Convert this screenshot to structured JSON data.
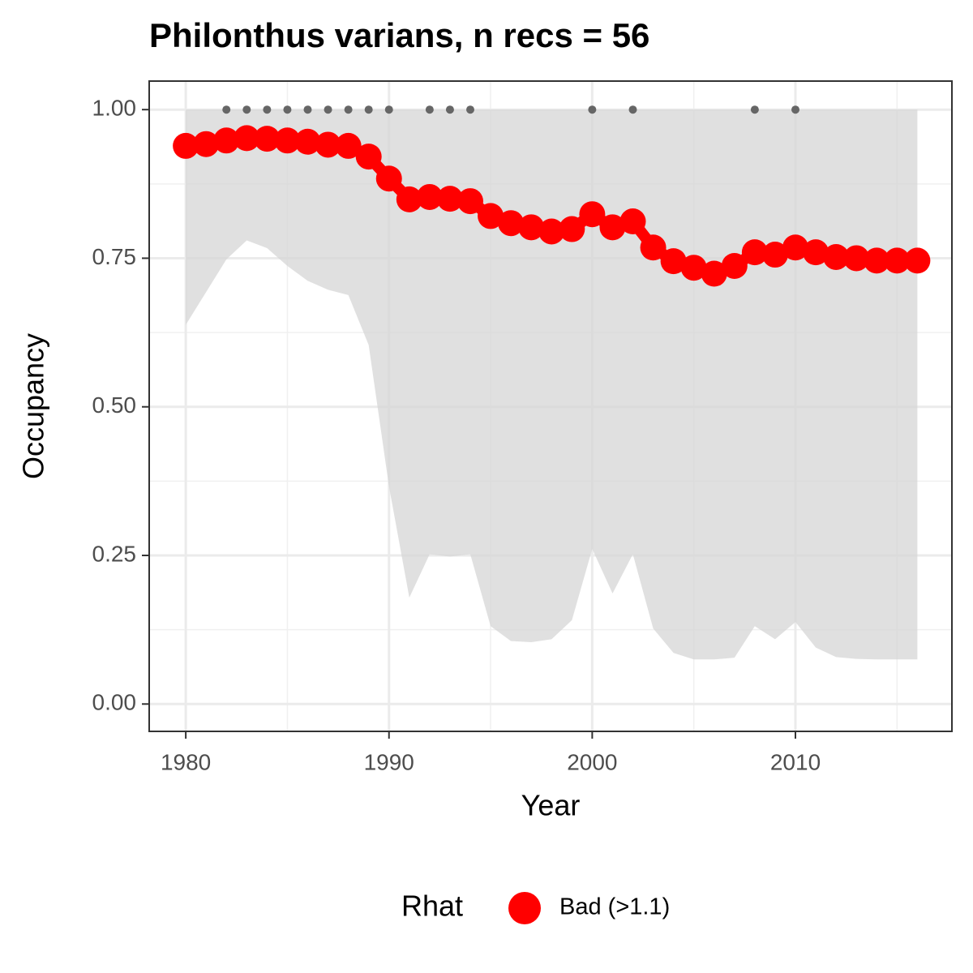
{
  "chart_data": {
    "type": "line",
    "title": "Philonthus varians, n recs = 56",
    "x_label": "Year",
    "y_label": "Occupancy",
    "legend_title": "Rhat",
    "x": [
      1980,
      1981,
      1982,
      1983,
      1984,
      1985,
      1986,
      1987,
      1988,
      1989,
      1990,
      1991,
      1992,
      1993,
      1994,
      1995,
      1996,
      1997,
      1998,
      1999,
      2000,
      2001,
      2002,
      2003,
      2004,
      2005,
      2006,
      2007,
      2008,
      2009,
      2010,
      2011,
      2012,
      2013,
      2014,
      2015,
      2016
    ],
    "series": [
      {
        "name": "Bad (>1.1)",
        "color": "#ff0000",
        "values": [
          0.939,
          0.942,
          0.948,
          0.952,
          0.951,
          0.948,
          0.946,
          0.941,
          0.939,
          0.921,
          0.884,
          0.849,
          0.853,
          0.85,
          0.846,
          0.821,
          0.809,
          0.802,
          0.795,
          0.799,
          0.824,
          0.802,
          0.812,
          0.768,
          0.745,
          0.734,
          0.724,
          0.737,
          0.76,
          0.756,
          0.768,
          0.76,
          0.752,
          0.75,
          0.746,
          0.746,
          0.746
        ]
      }
    ],
    "band": {
      "color": "#d6d6d6",
      "lower": [
        0.638,
        0.693,
        0.748,
        0.78,
        0.767,
        0.737,
        0.712,
        0.697,
        0.688,
        0.604,
        0.366,
        0.179,
        0.252,
        0.248,
        0.252,
        0.131,
        0.106,
        0.104,
        0.109,
        0.141,
        0.261,
        0.186,
        0.252,
        0.127,
        0.086,
        0.075,
        0.075,
        0.078,
        0.131,
        0.109,
        0.138,
        0.095,
        0.079,
        0.076,
        0.075,
        0.075,
        0.075
      ],
      "upper": [
        1,
        1,
        1,
        1,
        1,
        1,
        1,
        1,
        1,
        1,
        1,
        1,
        1,
        1,
        1,
        1,
        1,
        1,
        1,
        1,
        1,
        1,
        1,
        1,
        1,
        1,
        1,
        1,
        1,
        1,
        1,
        1,
        1,
        1,
        1,
        1,
        1
      ]
    },
    "records": {
      "color": "#666666",
      "x": [
        1982,
        1983,
        1984,
        1985,
        1986,
        1987,
        1988,
        1989,
        1990,
        1992,
        1993,
        1994,
        2000,
        2002,
        2008,
        2010
      ],
      "values": [
        1,
        1,
        1,
        1,
        1,
        1,
        1,
        1,
        1,
        1,
        1,
        1,
        1,
        1,
        1,
        1
      ]
    },
    "xlim": [
      1978.2,
      2017.7
    ],
    "ylim": [
      -0.046,
      1.048
    ],
    "xticks": [
      1980,
      1990,
      2000,
      2010
    ],
    "xminor": [
      1985,
      1995,
      2005,
      2015
    ],
    "yticks": [
      {
        "value": 0,
        "label": "0.00"
      },
      {
        "value": 0.25,
        "label": "0.25"
      },
      {
        "value": 0.5,
        "label": "0.50"
      },
      {
        "value": 0.75,
        "label": "0.75"
      },
      {
        "value": 1,
        "label": "1.00"
      }
    ],
    "yminor": [
      0.125,
      0.375,
      0.625,
      0.875
    ],
    "grid": true
  }
}
